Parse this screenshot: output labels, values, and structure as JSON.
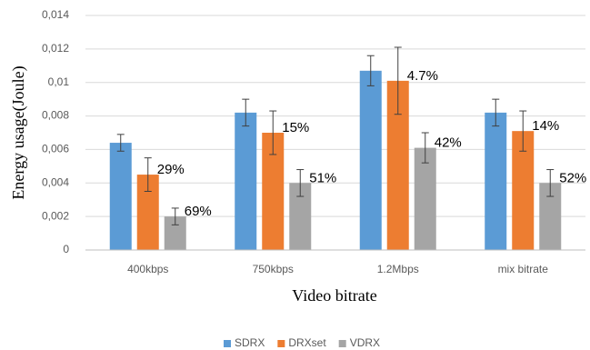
{
  "chart_data": {
    "type": "bar",
    "xlabel": "Video bitrate",
    "ylabel": "Energy usage(Joule)",
    "categories": [
      "400kbps",
      "750kbps",
      "1.2Mbps",
      "mix bitrate"
    ],
    "series": [
      {
        "name": "SDRX",
        "color": "#5b9bd5",
        "values": [
          0.0064,
          0.0082,
          0.0107,
          0.0082
        ],
        "errors": [
          0.0005,
          0.0008,
          0.0009,
          0.0008
        ]
      },
      {
        "name": "DRXset",
        "color": "#ed7d31",
        "values": [
          0.0045,
          0.007,
          0.0101,
          0.0071
        ],
        "errors": [
          0.001,
          0.0013,
          0.002,
          0.0012
        ],
        "annotations": [
          "29%",
          "15%",
          "4.7%",
          "14%"
        ]
      },
      {
        "name": "VDRX",
        "color": "#a5a5a5",
        "values": [
          0.002,
          0.004,
          0.0061,
          0.004
        ],
        "errors": [
          0.0005,
          0.0008,
          0.0009,
          0.0008
        ],
        "annotations": [
          "69%",
          "51%",
          "42%",
          "52%"
        ]
      }
    ],
    "ylim": [
      0,
      0.014
    ],
    "yticks": [
      0,
      {
        "value": 0.002,
        "label": "0,002"
      },
      {
        "value": 0.004,
        "label": "0,004"
      },
      {
        "value": 0.006,
        "label": "0,006"
      },
      {
        "value": 0.008,
        "label": "0,008"
      },
      {
        "value": 0.01,
        "label": "0,01"
      },
      {
        "value": 0.012,
        "label": "0,012"
      },
      {
        "value": 0.014,
        "label": "0,014"
      }
    ],
    "grid": true,
    "legend": "bottom"
  }
}
